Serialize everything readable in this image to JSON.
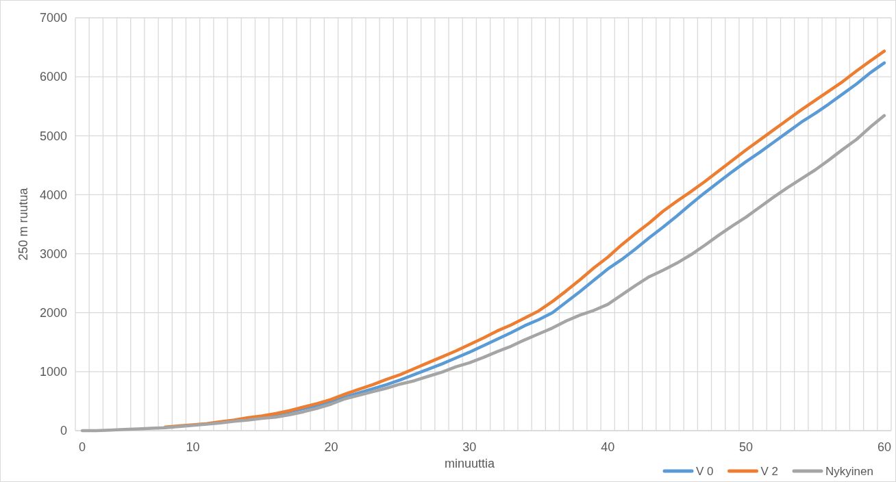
{
  "chart_data": {
    "type": "line",
    "xlabel": "minuuttia",
    "ylabel": "250 m ruutua",
    "categories": [
      "0",
      null,
      null,
      null,
      null,
      null,
      null,
      null,
      "10",
      null,
      null,
      null,
      null,
      null,
      null,
      null,
      null,
      null,
      "20",
      null,
      null,
      null,
      null,
      null,
      null,
      null,
      null,
      null,
      "30",
      null,
      null,
      null,
      null,
      null,
      null,
      null,
      null,
      null,
      "40",
      null,
      null,
      null,
      null,
      null,
      null,
      null,
      null,
      null,
      "50",
      null,
      null,
      null,
      null,
      null,
      null,
      null,
      null,
      null,
      "60"
    ],
    "series": [
      {
        "name": "V 0",
        "color": "#5b9bd5",
        "values": [
          null,
          null,
          null,
          null,
          null,
          null,
          null,
          null,
          null,
          null,
          null,
          null,
          null,
          240,
          275,
          320,
          375,
          430,
          500,
          570,
          640,
          710,
          780,
          860,
          950,
          1040,
          1130,
          1230,
          1330,
          1440,
          1550,
          1660,
          1780,
          1880,
          2000,
          2180,
          2360,
          2550,
          2740,
          2900,
          3080,
          3270,
          3450,
          3640,
          3840,
          4030,
          4210,
          4390,
          4560,
          4720,
          4890,
          5060,
          5230,
          5380,
          5540,
          5710,
          5880,
          6070,
          6235
        ]
      },
      {
        "name": "V 2",
        "color": "#ed7d31",
        "values": [
          null,
          null,
          null,
          null,
          null,
          null,
          60,
          80,
          100,
          120,
          150,
          180,
          220,
          250,
          290,
          340,
          400,
          460,
          530,
          620,
          700,
          780,
          870,
          950,
          1050,
          1150,
          1250,
          1350,
          1460,
          1570,
          1690,
          1790,
          1910,
          2030,
          2190,
          2370,
          2560,
          2760,
          2940,
          3150,
          3340,
          3520,
          3720,
          3890,
          4050,
          4220,
          4400,
          4580,
          4760,
          4930,
          5100,
          5270,
          5440,
          5600,
          5760,
          5920,
          6100,
          6270,
          6435
        ]
      },
      {
        "name": "Nykyinen",
        "color": "#a5a5a5",
        "values": [
          0,
          0,
          10,
          20,
          30,
          40,
          50,
          70,
          90,
          110,
          130,
          160,
          180,
          210,
          230,
          270,
          320,
          380,
          450,
          540,
          600,
          660,
          720,
          790,
          845,
          920,
          990,
          1080,
          1150,
          1240,
          1340,
          1430,
          1540,
          1640,
          1740,
          1860,
          1960,
          2040,
          2140,
          2300,
          2460,
          2610,
          2720,
          2840,
          2980,
          3140,
          3310,
          3470,
          3620,
          3790,
          3960,
          4120,
          4270,
          4420,
          4590,
          4770,
          4940,
          5150,
          5342
        ]
      }
    ],
    "ylim": [
      0,
      7000
    ],
    "yticks": [
      0,
      1000,
      2000,
      3000,
      4000,
      5000,
      6000,
      7000
    ],
    "grid": true,
    "legend": "bottom right",
    "marker": "none",
    "line_style": "solid"
  }
}
